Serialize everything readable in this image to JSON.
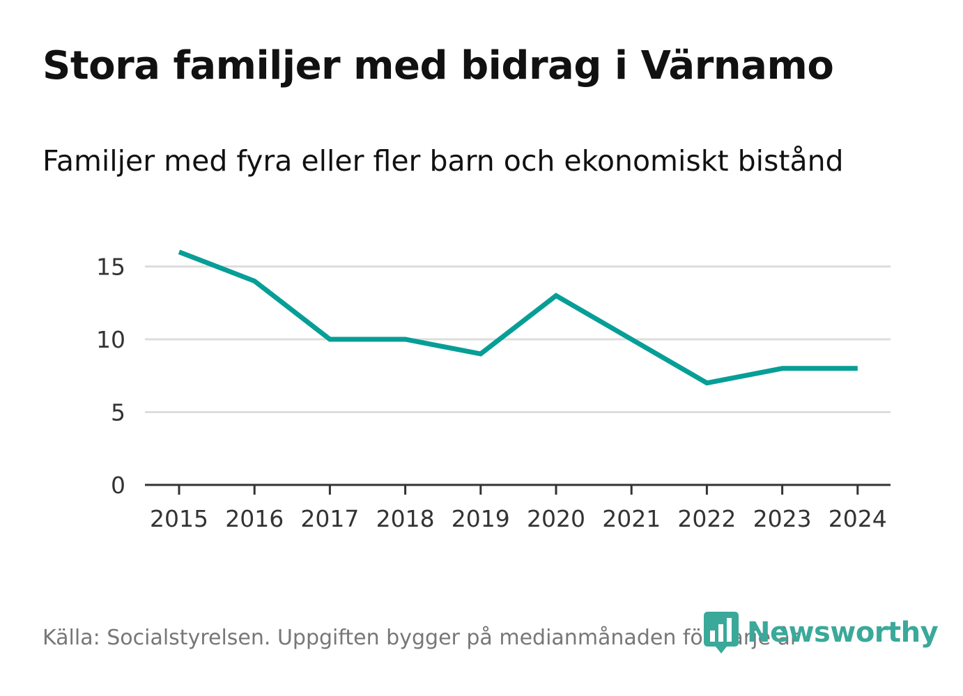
{
  "header": {
    "title": "Stora familjer med bidrag i Värnamo",
    "subtitle": "Familjer med fyra eller fler barn och ekonomiskt bistånd"
  },
  "footer": {
    "source": "Källa: Socialstyrelsen. Uppgiften bygger på medianmånaden för varje år",
    "brand": "Newsworthy"
  },
  "colors": {
    "line": "#069e96",
    "grid": "#dddddd",
    "axis": "#333333",
    "brand": "#3aa99a"
  },
  "chart_data": {
    "type": "line",
    "title": "Stora familjer med bidrag i Värnamo",
    "subtitle": "Familjer med fyra eller fler barn och ekonomiskt bistånd",
    "xlabel": "",
    "ylabel": "",
    "categories": [
      "2015",
      "2016",
      "2017",
      "2018",
      "2019",
      "2020",
      "2021",
      "2022",
      "2023",
      "2024"
    ],
    "series": [
      {
        "name": "Familjer",
        "values": [
          16,
          14,
          10,
          10,
          9,
          13,
          10,
          7,
          8,
          8
        ]
      }
    ],
    "yticks": [
      0,
      5,
      10,
      15
    ],
    "ylim": [
      0,
      15
    ],
    "grid": true,
    "legend": "none"
  }
}
